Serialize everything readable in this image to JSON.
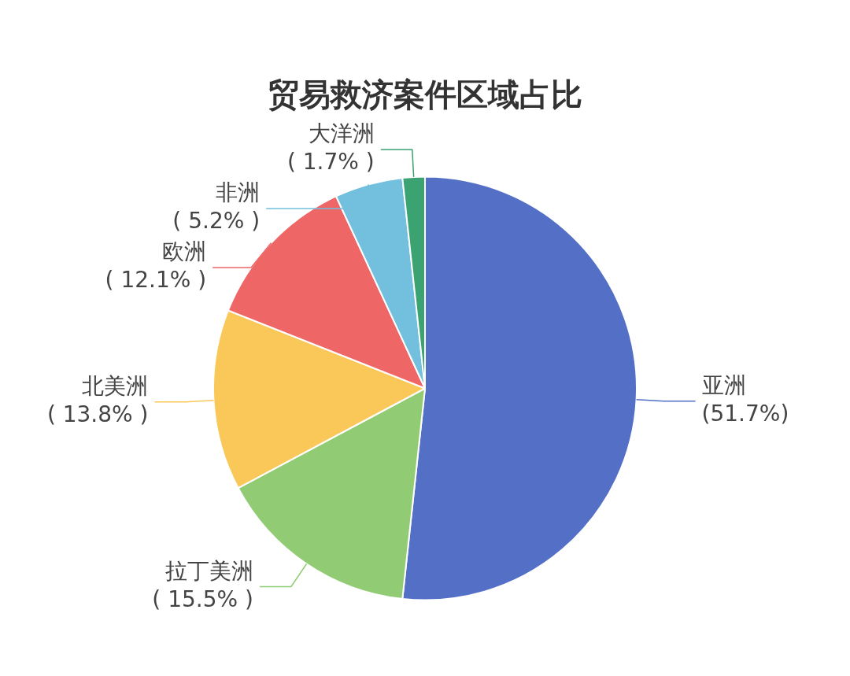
{
  "chart_data": {
    "type": "pie",
    "title": "贸易救济案件区域占比",
    "categories": [
      "亚洲",
      "拉丁美洲",
      "北美洲",
      "欧洲",
      "非洲",
      "大洋洲"
    ],
    "values": [
      51.7,
      15.5,
      13.8,
      12.1,
      5.2,
      1.7
    ],
    "colors": [
      "#5470c6",
      "#91cc75",
      "#fac858",
      "#ee6666",
      "#73c0de",
      "#3ba272"
    ],
    "value_labels": [
      "(51.7%)",
      "( 15.5% )",
      "( 13.8% )",
      "( 12.1% )",
      "( 5.2% )",
      "( 1.7% )"
    ],
    "legend": false
  }
}
